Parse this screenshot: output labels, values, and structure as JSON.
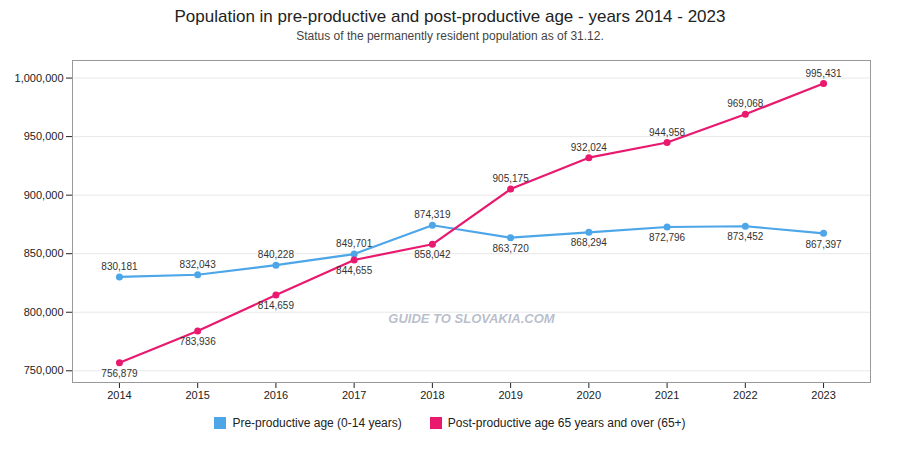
{
  "chart_data": {
    "type": "line",
    "title": "Population in pre-productive and post-productive age - years 2014 - 2023",
    "subtitle": "Status of the permanently resident population as of 31.12.",
    "annotations": [
      "GUIDE TO SLOVAKIA.COM"
    ],
    "x": [
      2014,
      2015,
      2016,
      2017,
      2018,
      2019,
      2020,
      2021,
      2022,
      2023
    ],
    "series": [
      {
        "name": "Pre-productive age (0-14 years)",
        "color": "#4da6e8",
        "values": [
          830181,
          832043,
          840228,
          849701,
          874319,
          863720,
          868294,
          872796,
          873452,
          867397
        ],
        "value_labels": [
          "830,181",
          "832,043",
          "840,228",
          "849,701",
          "874,319",
          "863,720",
          "868,294",
          "872,796",
          "873,452",
          "867,397"
        ]
      },
      {
        "name": "Post-productive age 65 years and over (65+)",
        "color": "#e8196e",
        "values": [
          756879,
          783936,
          814659,
          844655,
          858042,
          905175,
          932024,
          944958,
          969068,
          995431
        ],
        "value_labels": [
          "756,879",
          "783,936",
          "814,659",
          "844,655",
          "858,042",
          "905,175",
          "932,024",
          "944,958",
          "969,068",
          "995,431"
        ]
      }
    ],
    "xlim": [
      2013.4,
      2023.6
    ],
    "xticks": [
      2014,
      2015,
      2016,
      2017,
      2018,
      2019,
      2020,
      2021,
      2022,
      2023
    ],
    "ylim": [
      740000,
      1015000
    ],
    "yticks": [
      {
        "value": 750000,
        "label": "750,000"
      },
      {
        "value": 800000,
        "label": "800,000"
      },
      {
        "value": 850000,
        "label": "850,000"
      },
      {
        "value": 900000,
        "label": "900,000"
      },
      {
        "value": 950000,
        "label": "950,000"
      },
      {
        "value": 1000000,
        "label": "1,000,000"
      }
    ],
    "grid": true,
    "legend": "bottom",
    "marker": "circle",
    "data_labels": true
  }
}
